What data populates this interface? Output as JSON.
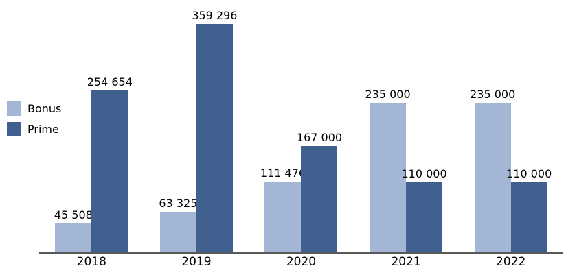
{
  "chart_data": {
    "type": "bar",
    "title": "",
    "xlabel": "",
    "ylabel": "",
    "categories": [
      "2018",
      "2019",
      "2020",
      "2021",
      "2022"
    ],
    "series": [
      {
        "name": "Bonus",
        "color": "#a3b6d5",
        "values": [
          45508,
          63325,
          111476,
          235000,
          235000
        ],
        "labels": [
          "45 508",
          "63 325",
          "111 476",
          "235 000",
          "235 000"
        ]
      },
      {
        "name": "Prime",
        "color": "#40618f",
        "values": [
          254654,
          359296,
          167000,
          110000,
          110000
        ],
        "labels": [
          "254 654",
          "359 296",
          "167 000",
          "110 000",
          "110 000"
        ]
      }
    ],
    "ylim": [
      0,
      359296
    ],
    "grid": false,
    "legend_position": "left",
    "axis_line_color": "#595959"
  }
}
